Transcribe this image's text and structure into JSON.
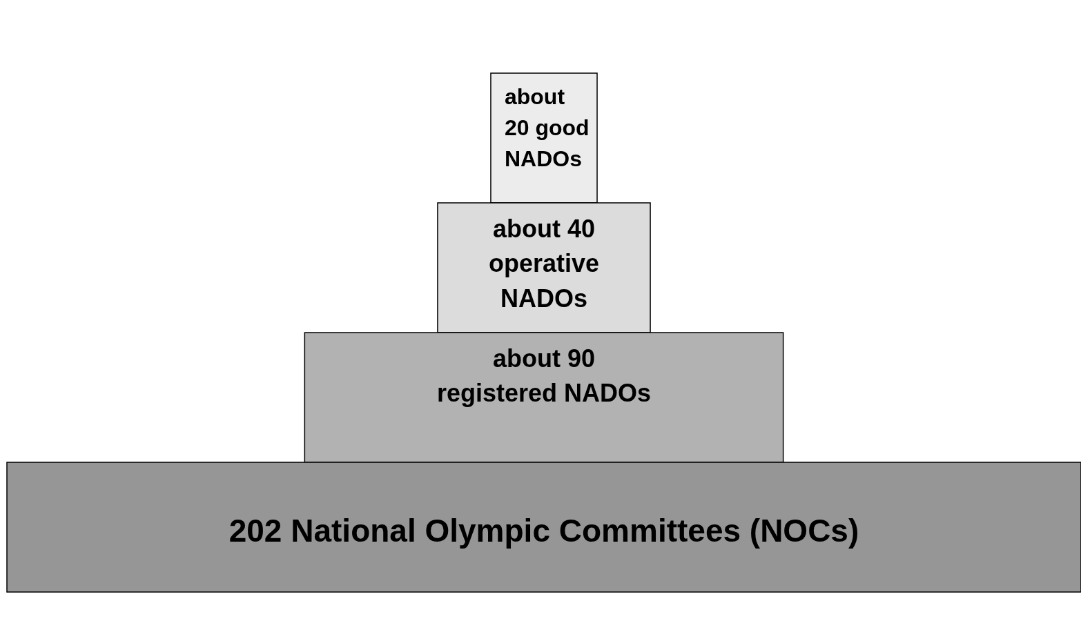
{
  "chart_data": {
    "type": "other",
    "categories": [
      "good\nNADOs",
      "operative\nNADOs",
      "registered NADOs",
      "National Olympic Committees (NOCs)"
    ],
    "values": [
      20,
      40,
      90,
      202
    ],
    "value_labels": [
      "about\n20",
      "about 40",
      "about 90",
      "202"
    ],
    "colors": [
      "#ececec",
      "#dcdcdc",
      "#b2b2b2",
      "#969696"
    ]
  }
}
